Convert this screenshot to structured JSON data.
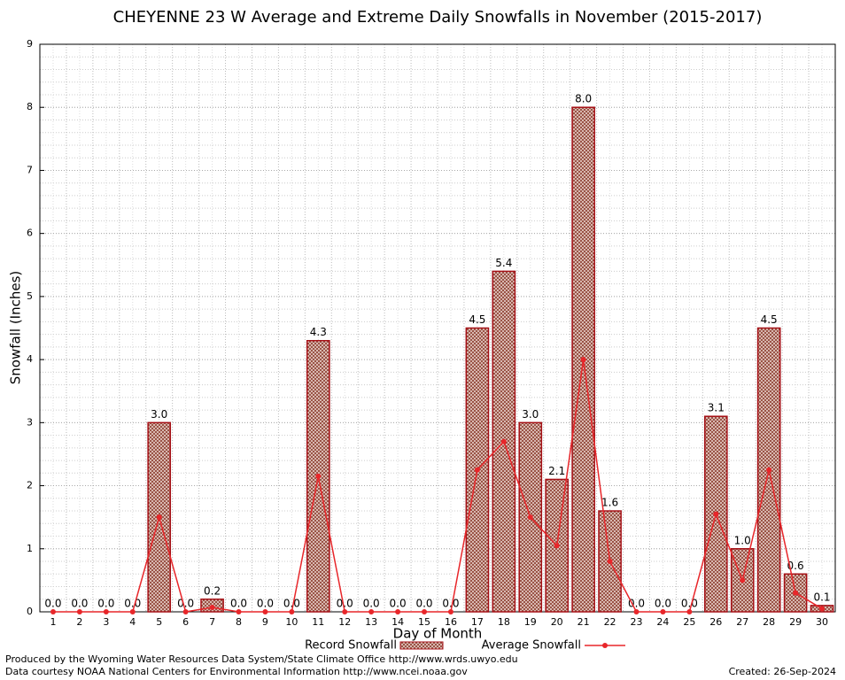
{
  "chart_data": {
    "type": "bar",
    "title": "CHEYENNE 23 W Average and Extreme Daily Snowfalls in November (2015-2017)",
    "x_label": "Day of Month",
    "y_label": "Snowfall (Inches)",
    "categories": [
      "1",
      "2",
      "3",
      "4",
      "5",
      "6",
      "7",
      "8",
      "9",
      "10",
      "11",
      "12",
      "13",
      "14",
      "15",
      "16",
      "17",
      "18",
      "19",
      "20",
      "21",
      "22",
      "23",
      "24",
      "25",
      "26",
      "27",
      "28",
      "29",
      "30"
    ],
    "series": [
      {
        "name": "Record Snowfall",
        "type": "bar",
        "color": "#a50f15",
        "values": [
          0,
          0,
          0,
          0,
          3.0,
          0,
          0.2,
          0,
          0,
          0,
          4.3,
          0,
          0,
          0,
          0,
          0,
          4.5,
          5.4,
          3.0,
          2.1,
          8.0,
          1.6,
          0,
          0,
          0,
          3.1,
          1.0,
          4.5,
          0.6,
          0.1
        ],
        "value_labels": [
          "0.0",
          "0.0",
          "0.0",
          "0.0",
          "3.0",
          "0.0",
          "0.2",
          "0.0",
          "0.0",
          "0.0",
          "4.3",
          "0.0",
          "0.0",
          "0.0",
          "0.0",
          "0.0",
          "4.5",
          "5.4",
          "3.0",
          "2.1",
          "8.0",
          "1.6",
          "0.0",
          "0.0",
          "0.0",
          "3.1",
          "1.0",
          "4.5",
          "0.6",
          "0.1"
        ]
      },
      {
        "name": "Average Snowfall",
        "type": "line",
        "color": "#e8262a",
        "values": [
          0,
          0,
          0,
          0,
          1.5,
          0,
          0.07,
          0,
          0,
          0,
          2.15,
          0,
          0,
          0,
          0,
          0,
          2.25,
          2.7,
          1.5,
          1.05,
          4.0,
          0.8,
          0,
          0,
          0,
          1.55,
          0.5,
          2.25,
          0.3,
          0.05
        ]
      }
    ],
    "ylim": [
      0,
      9
    ],
    "yticks": [
      0,
      1,
      2,
      3,
      4,
      5,
      6,
      7,
      8,
      9
    ],
    "grid": true
  },
  "footer": {
    "produced": "Produced by the Wyoming Water Resources Data System/State Climate Office http://www.wrds.uwyo.edu",
    "courtesy": "Data courtesy NOAA National Centers for Environmental Information http://www.ncei.noaa.gov",
    "created": "Created:  26-Sep-2024"
  }
}
